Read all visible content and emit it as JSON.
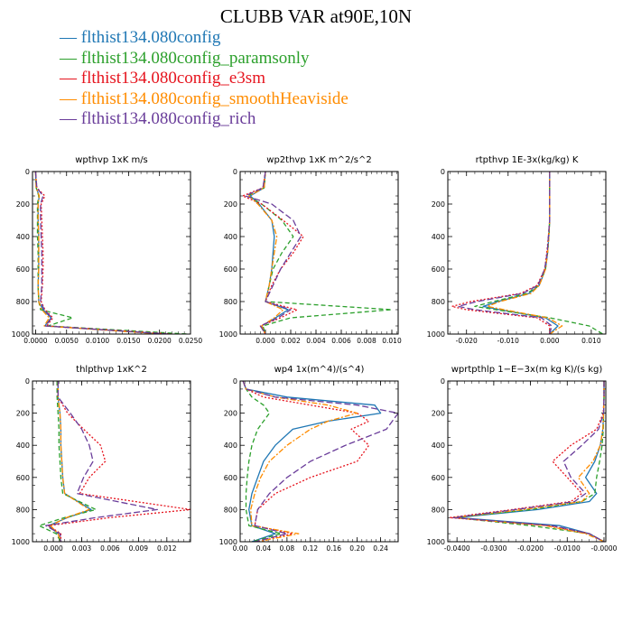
{
  "figure": {
    "title": "CLUBB VAR at90E,10N",
    "legend": [
      {
        "label": "— flthist134.080config",
        "color": "#1f77b4"
      },
      {
        "label": "— flthist134.080config_paramsonly",
        "color": "#2ca02c"
      },
      {
        "label": "— flthist134.080config_e3sm",
        "color": "#e6141e"
      },
      {
        "label": "— flthist134.080config_smoothHeaviside",
        "color": "#ff8c00"
      },
      {
        "label": "— flthist134.080config_rich",
        "color": "#6a3d9a"
      }
    ]
  },
  "chart_data": [
    {
      "type": "line",
      "title": "wpthvp  1xK m/s",
      "xlim": [
        -0.0005,
        0.025
      ],
      "ylim": [
        1000,
        0
      ],
      "xticks": [
        0.0,
        0.005,
        0.01,
        0.015,
        0.02,
        0.025
      ],
      "xtick_labels": [
        "0.0000",
        "0.0050",
        "0.0100",
        "0.0150",
        "0.0200",
        "0.0250"
      ],
      "yticks": [
        0,
        200,
        400,
        600,
        800,
        1000
      ],
      "ytick_labels": [
        "0",
        "200",
        "400",
        "600",
        "800",
        "1000"
      ],
      "y": [
        0,
        100,
        150,
        200,
        300,
        400,
        500,
        600,
        700,
        800,
        850,
        900,
        950,
        1000
      ],
      "series": [
        {
          "name": "flthist134.080config",
          "values": [
            0.0,
            0.0001,
            0.0006,
            0.0004,
            0.0004,
            0.0005,
            0.0005,
            0.0005,
            0.0004,
            0.0005,
            0.0012,
            0.0025,
            0.0015,
            0.021
          ]
        },
        {
          "name": "flthist134.080config_paramsonly",
          "values": [
            0.0,
            0.0001,
            0.0005,
            0.0003,
            0.0003,
            0.0003,
            0.0004,
            0.0004,
            0.0004,
            0.0005,
            0.0008,
            0.006,
            0.002,
            0.0245
          ]
        },
        {
          "name": "flthist134.080config_e3sm",
          "values": [
            0.0,
            0.0002,
            0.0015,
            0.0009,
            0.001,
            0.0011,
            0.0012,
            0.0012,
            0.0011,
            0.0009,
            0.0015,
            0.0028,
            0.0018,
            0.022
          ]
        },
        {
          "name": "flthist134.080config_smoothHeaviside",
          "values": [
            0.0,
            0.0001,
            0.0006,
            0.0004,
            0.0004,
            0.0005,
            0.0005,
            0.0005,
            0.0004,
            0.0005,
            0.001,
            0.0022,
            0.0014,
            0.0205
          ]
        },
        {
          "name": "flthist134.080config_rich",
          "values": [
            0.0,
            0.0002,
            0.0012,
            0.0008,
            0.0008,
            0.0009,
            0.001,
            0.001,
            0.001,
            0.0008,
            0.0014,
            0.0026,
            0.0016,
            0.0215
          ]
        }
      ]
    },
    {
      "type": "line",
      "title": "wp2thvp  1xK m^2/s^2",
      "xlim": [
        -0.002,
        0.0105
      ],
      "ylim": [
        1000,
        0
      ],
      "xticks": [
        0.0,
        0.002,
        0.004,
        0.006,
        0.008,
        0.01
      ],
      "xtick_labels": [
        "0.000",
        "0.002",
        "0.004",
        "0.006",
        "0.008",
        "0.010"
      ],
      "yticks": [
        0,
        200,
        400,
        600,
        800,
        1000
      ],
      "ytick_labels": [
        "0",
        "200",
        "400",
        "600",
        "800",
        "1000"
      ],
      "y": [
        0,
        100,
        150,
        200,
        300,
        400,
        500,
        600,
        700,
        800,
        850,
        900,
        950,
        1000
      ],
      "series": [
        {
          "name": "flthist134.080config",
          "values": [
            0.0,
            -0.0001,
            -0.0012,
            -0.0005,
            0.0005,
            0.0007,
            0.0006,
            0.0005,
            0.0003,
            0.0,
            0.0018,
            0.0008,
            -0.0003,
            0.0
          ]
        },
        {
          "name": "flthist134.080config_paramsonly",
          "values": [
            0.0,
            -0.0001,
            -0.0014,
            -0.0003,
            0.0013,
            0.0022,
            0.0013,
            0.0006,
            0.0003,
            0.0,
            0.01,
            0.002,
            -0.0002,
            0.0
          ]
        },
        {
          "name": "flthist134.080config_e3sm",
          "values": [
            0.0,
            -0.0002,
            -0.0018,
            -0.0003,
            0.0014,
            0.003,
            0.0022,
            0.0012,
            0.0005,
            0.0,
            0.0025,
            0.0012,
            -0.0004,
            0.0
          ]
        },
        {
          "name": "flthist134.080config_smoothHeaviside",
          "values": [
            0.0,
            -0.0001,
            -0.0013,
            -0.0006,
            0.0005,
            0.0009,
            0.0007,
            0.0005,
            0.0003,
            0.0,
            0.0014,
            0.0007,
            -0.0003,
            0.0
          ]
        },
        {
          "name": "flthist134.080config_rich",
          "values": [
            0.0,
            -0.0002,
            -0.0016,
            0.0005,
            0.0022,
            0.0028,
            0.002,
            0.0012,
            0.0006,
            0.0,
            0.002,
            0.001,
            -0.0004,
            0.0
          ]
        }
      ]
    },
    {
      "type": "line",
      "title": "rtpthvp  1E-3x(kg/kg) K",
      "xlim": [
        -0.0245,
        0.0135
      ],
      "ylim": [
        1000,
        0
      ],
      "xticks": [
        -0.02,
        -0.01,
        0.0,
        0.01
      ],
      "xtick_labels": [
        "-0.020",
        "-0.010",
        "0.000",
        "0.010"
      ],
      "yticks": [
        0,
        200,
        400,
        600,
        800,
        1000
      ],
      "ytick_labels": [
        "0",
        "200",
        "400",
        "600",
        "800",
        "1000"
      ],
      "y": [
        0,
        100,
        200,
        300,
        400,
        500,
        600,
        700,
        750,
        800,
        830,
        850,
        900,
        950,
        1000
      ],
      "series": [
        {
          "name": "flthist134.080config",
          "values": [
            0.0,
            0.0,
            0.0,
            0.0,
            -0.0002,
            -0.0005,
            -0.001,
            -0.0025,
            -0.005,
            -0.0125,
            -0.016,
            -0.012,
            -0.001,
            0.002,
            0.0
          ]
        },
        {
          "name": "flthist134.080config_paramsonly",
          "values": [
            0.0,
            0.0,
            0.0,
            0.0,
            -0.0002,
            -0.0005,
            -0.001,
            -0.0025,
            -0.0055,
            -0.0135,
            -0.018,
            -0.013,
            0.0,
            0.0095,
            0.0128
          ]
        },
        {
          "name": "flthist134.080config_e3sm",
          "values": [
            0.0,
            0.0,
            0.0,
            0.0,
            -0.0003,
            -0.0007,
            -0.0012,
            -0.003,
            -0.007,
            -0.019,
            -0.0235,
            -0.02,
            -0.003,
            0.0,
            0.0
          ]
        },
        {
          "name": "flthist134.080config_smoothHeaviside",
          "values": [
            0.0,
            0.0,
            0.0,
            0.0,
            -0.0002,
            -0.0005,
            -0.001,
            -0.0025,
            -0.0045,
            -0.012,
            -0.015,
            -0.011,
            -0.0005,
            0.003,
            0.0
          ]
        },
        {
          "name": "flthist134.080config_rich",
          "values": [
            0.0,
            0.0,
            0.0,
            0.0,
            -0.0003,
            -0.0006,
            -0.0012,
            -0.0028,
            -0.0065,
            -0.0175,
            -0.022,
            -0.018,
            -0.002,
            0.0005,
            0.0
          ]
        }
      ]
    },
    {
      "type": "line",
      "title": "thlpthvp  1xK^2",
      "xlim": [
        -0.0022,
        0.0145
      ],
      "ylim": [
        1000,
        0
      ],
      "xticks": [
        0.0,
        0.003,
        0.006,
        0.009,
        0.012
      ],
      "xtick_labels": [
        "0.000",
        "0.003",
        "0.006",
        "0.009",
        "0.012"
      ],
      "yticks": [
        0,
        200,
        400,
        600,
        800,
        1000
      ],
      "ytick_labels": [
        "0",
        "200",
        "400",
        "600",
        "800",
        "1000"
      ],
      "y": [
        0,
        100,
        200,
        300,
        400,
        500,
        600,
        700,
        800,
        850,
        900,
        950,
        1000
      ],
      "series": [
        {
          "name": "flthist134.080config",
          "values": [
            0.0005,
            0.0005,
            0.0007,
            0.0008,
            0.0008,
            0.0009,
            0.001,
            0.0012,
            0.004,
            0.0015,
            -0.0005,
            0.0005,
            0.0008
          ]
        },
        {
          "name": "flthist134.080config_paramsonly",
          "values": [
            0.0004,
            0.0004,
            0.0005,
            0.0006,
            0.0006,
            0.0007,
            0.0008,
            0.001,
            0.0045,
            0.0012,
            -0.0015,
            0.0003,
            0.0008
          ]
        },
        {
          "name": "flthist134.080config_e3sm",
          "values": [
            0.0005,
            0.0005,
            0.0015,
            0.0032,
            0.005,
            0.0055,
            0.0038,
            0.0028,
            0.0145,
            0.006,
            -0.0005,
            0.0008,
            0.0008
          ]
        },
        {
          "name": "flthist134.080config_smoothHeaviside",
          "values": [
            0.0005,
            0.0005,
            0.0007,
            0.0008,
            0.0008,
            0.0009,
            0.001,
            0.0012,
            0.0038,
            0.0014,
            -0.0003,
            0.0005,
            0.0008
          ]
        },
        {
          "name": "flthist134.080config_rich",
          "values": [
            0.0005,
            0.0005,
            0.0018,
            0.003,
            0.0038,
            0.0042,
            0.0032,
            0.0025,
            0.011,
            0.0045,
            -0.0008,
            0.0007,
            0.0008
          ]
        }
      ]
    },
    {
      "type": "line",
      "title": "wp4  1x(m^4)/(s^4)",
      "xlim": [
        0.0,
        0.27
      ],
      "ylim": [
        1000,
        0
      ],
      "xticks": [
        0.0,
        0.04,
        0.08,
        0.12,
        0.16,
        0.2,
        0.24
      ],
      "xtick_labels": [
        "0.00",
        "0.04",
        "0.08",
        "0.12",
        "0.16",
        "0.20",
        "0.24"
      ],
      "yticks": [
        0,
        200,
        400,
        600,
        800,
        1000
      ],
      "ytick_labels": [
        "0",
        "200",
        "400",
        "600",
        "800",
        "1000"
      ],
      "y": [
        0,
        50,
        100,
        150,
        200,
        250,
        300,
        400,
        500,
        600,
        700,
        800,
        900,
        950,
        1000
      ],
      "series": [
        {
          "name": "flthist134.080config",
          "values": [
            0.005,
            0.01,
            0.08,
            0.23,
            0.24,
            0.15,
            0.09,
            0.06,
            0.04,
            0.03,
            0.02,
            0.015,
            0.02,
            0.06,
            0.02
          ]
        },
        {
          "name": "flthist134.080config_paramsonly",
          "values": [
            0.005,
            0.01,
            0.02,
            0.04,
            0.05,
            0.04,
            0.03,
            0.02,
            0.015,
            0.012,
            0.01,
            0.01,
            0.015,
            0.07,
            0.02
          ]
        },
        {
          "name": "flthist134.080config_e3sm",
          "values": [
            0.005,
            0.01,
            0.04,
            0.12,
            0.2,
            0.22,
            0.19,
            0.22,
            0.2,
            0.12,
            0.06,
            0.03,
            0.025,
            0.09,
            0.03
          ]
        },
        {
          "name": "flthist134.080config_smoothHeaviside",
          "values": [
            0.005,
            0.01,
            0.06,
            0.15,
            0.2,
            0.15,
            0.12,
            0.08,
            0.05,
            0.035,
            0.025,
            0.018,
            0.02,
            0.1,
            0.03
          ]
        },
        {
          "name": "flthist134.080config_rich",
          "values": [
            0.005,
            0.01,
            0.06,
            0.2,
            0.27,
            0.26,
            0.25,
            0.18,
            0.12,
            0.08,
            0.05,
            0.03,
            0.025,
            0.08,
            0.025
          ]
        }
      ]
    },
    {
      "type": "line",
      "title": "wprtpthlp  1−E−3x(m kg K)/(s kg)",
      "xlim": [
        -0.0425,
        0.0005
      ],
      "ylim": [
        1000,
        0
      ],
      "xticks": [
        -0.04,
        -0.03,
        -0.02,
        -0.01,
        0.0
      ],
      "xtick_labels": [
        "-0.0400",
        "-0.0300",
        "-0.0200",
        "-0.0100",
        "-0.0000"
      ],
      "yticks": [
        0,
        200,
        400,
        600,
        800,
        1000
      ],
      "ytick_labels": [
        "0",
        "200",
        "400",
        "600",
        "800",
        "1000"
      ],
      "y": [
        0,
        100,
        200,
        300,
        400,
        500,
        600,
        700,
        750,
        800,
        850,
        900,
        950,
        1000
      ],
      "series": [
        {
          "name": "flthist134.080config",
          "values": [
            0.0,
            0.0,
            -0.0001,
            -0.0003,
            -0.001,
            -0.0025,
            -0.005,
            -0.002,
            -0.004,
            -0.018,
            -0.04,
            -0.012,
            -0.004,
            0.0
          ]
        },
        {
          "name": "flthist134.080config_paramsonly",
          "values": [
            0.0,
            0.0,
            -0.0001,
            -0.0002,
            -0.0005,
            -0.0012,
            -0.002,
            -0.0025,
            -0.006,
            -0.02,
            -0.0405,
            -0.02,
            -0.004,
            0.0
          ]
        },
        {
          "name": "flthist134.080config_e3sm",
          "values": [
            0.0,
            0.0,
            -0.0002,
            -0.002,
            -0.009,
            -0.014,
            -0.01,
            -0.006,
            -0.009,
            -0.025,
            -0.042,
            -0.015,
            -0.004,
            0.0
          ]
        },
        {
          "name": "flthist134.080config_smoothHeaviside",
          "values": [
            0.0,
            0.0,
            -0.0001,
            -0.0003,
            -0.001,
            -0.003,
            -0.007,
            -0.004,
            -0.006,
            -0.022,
            -0.041,
            -0.016,
            -0.005,
            0.0
          ]
        },
        {
          "name": "flthist134.080config_rich",
          "values": [
            0.0,
            0.0,
            -0.0001,
            -0.0015,
            -0.006,
            -0.011,
            -0.009,
            -0.005,
            -0.008,
            -0.024,
            -0.041,
            -0.014,
            -0.004,
            0.0
          ]
        }
      ]
    }
  ]
}
